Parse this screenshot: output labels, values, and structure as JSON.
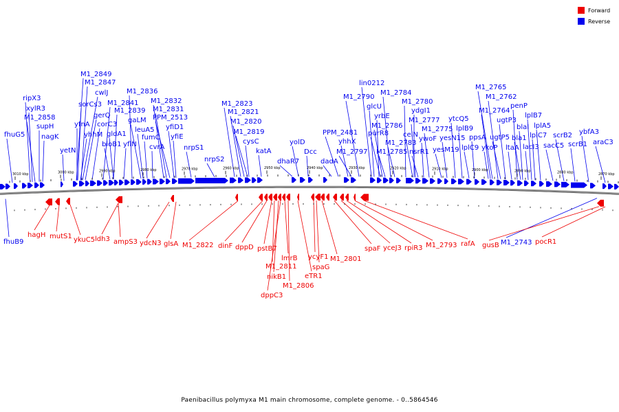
{
  "title": "Paenibacillus polymyxa M1 main chromosome, complete genome. - 0..5864546",
  "legend": [
    {
      "label": "Forward",
      "color": "#ee0000"
    },
    {
      "label": "Reverse",
      "color": "#0000ee"
    }
  ],
  "colors": {
    "forward": "#ee0000",
    "reverse": "#0000ee",
    "backbone": "#777777"
  },
  "ticks": [
    "3010 kbp",
    "3000 kbp",
    "2990 kbp",
    "2980 kbp",
    "2970 kbp",
    "2960 kbp",
    "2950 kbp",
    "2940 kbp",
    "2930 kbp",
    "2920 kbp",
    "2910 kbp",
    "2900 kbp",
    "2890 kbp",
    "2880 kbp",
    "2870 kbp"
  ],
  "reverse_labels": [
    "fhuG5",
    "ripX3",
    "xylR3",
    "M1_2858",
    "supH",
    "nagK",
    "yetN",
    "M1_2849",
    "M1_2847",
    "cwlJ",
    "sorCs3",
    "gerQ",
    "yfnA",
    "yhhM",
    "corC3",
    "M1_2841",
    "M1_2839",
    "bioB1",
    "gldA1",
    "yflN",
    "M1_2836",
    "gaLM",
    "leuA5",
    "fumC",
    "cvrA",
    "M1_2832",
    "M1_2831",
    "PPM_2513",
    "yfiD1",
    "yfiE",
    "nrpS1",
    "nrpS2",
    "M1_2823",
    "M1_2821",
    "M1_2820",
    "M1_2819",
    "cysC",
    "katA",
    "dhaR7",
    "yolD",
    "Dcc",
    "dadA",
    "PPM_2481",
    "yhhX",
    "M1_2797",
    "M1_2790",
    "lin0212",
    "glcU",
    "purR8",
    "yrbE",
    "M1_2786",
    "M1_2784",
    "M1_2785",
    "M1_2783",
    "M1_2780",
    "ydgI1",
    "celN",
    "M1_2777",
    "ywoF",
    "nsrR1",
    "M1_2775",
    "yesN15",
    "yesM19",
    "ytcQ5",
    "lplB9",
    "lplC9",
    "ppsA",
    "M1_2765",
    "M1_2762",
    "M1_2764",
    "ykoP",
    "ugtP5",
    "ugtP3",
    "penP",
    "ltaA",
    "blaI",
    "bla1",
    "lacI3",
    "lplB7",
    "lplA5",
    "lplC7",
    "sacC5",
    "scrB2",
    "scrB1",
    "ybfA3",
    "araC3",
    "fhuB9",
    "M1_2743"
  ],
  "forward_labels": [
    "hagH",
    "mutS1",
    "ykuC5",
    "ldh3",
    "ampS3",
    "ydcN3",
    "glsA",
    "M1_2822",
    "dinF",
    "dppD",
    "pstB7",
    "M1_2811",
    "nikB1",
    "dppC3",
    "lmrB",
    "M1_2806",
    "eTR1",
    "ycyF1",
    "spaG",
    "M1_2801",
    "spaF",
    "yceJ3",
    "rpiR3",
    "M1_2793",
    "rafA",
    "gusB",
    "pocR1"
  ]
}
